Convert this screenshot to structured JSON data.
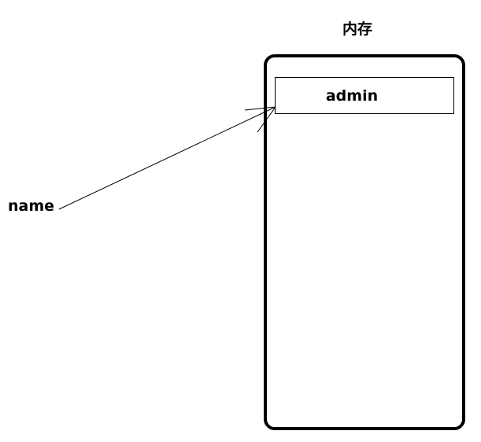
{
  "memory": {
    "title": "内存",
    "cells": [
      {
        "value": "admin"
      }
    ]
  },
  "variable": {
    "name": "name"
  }
}
